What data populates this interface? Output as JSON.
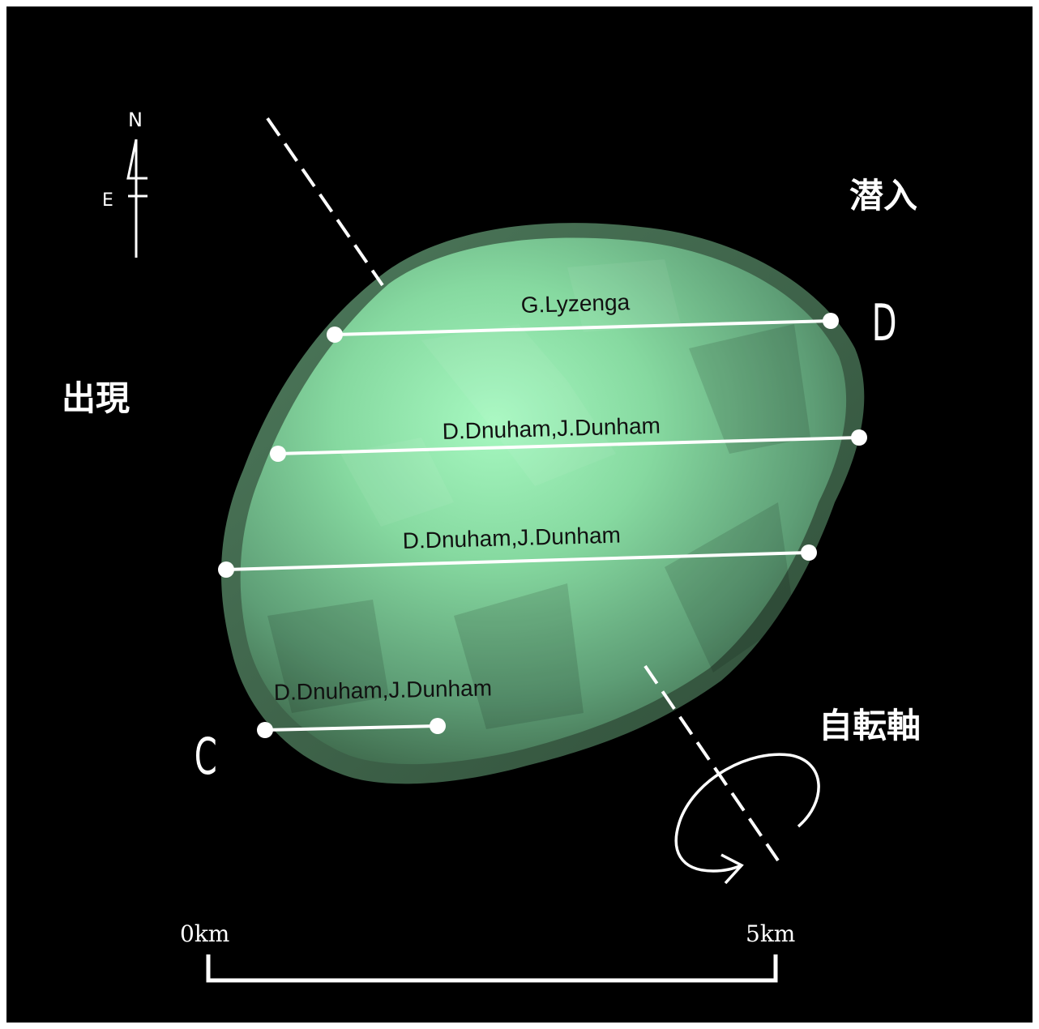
{
  "compass": {
    "north": "N",
    "east": "E"
  },
  "labels": {
    "disappearance": "潜入",
    "reappearance": "出現",
    "rotation_axis": "自転軸",
    "point_d": "D",
    "point_c": "C"
  },
  "chords": [
    {
      "observer": "G.Lyzenga"
    },
    {
      "observer": "D.Dnuham,J.Dunham"
    },
    {
      "observer": "D.Dnuham,J.Dunham"
    },
    {
      "observer": "D.Dnuham,J.Dunham"
    }
  ],
  "scale_bar": {
    "start_label": "0km",
    "end_label": "5km"
  },
  "colors": {
    "background": "#000000",
    "asteroid_light": "#9ef5b8",
    "asteroid_mid": "#6fbf8a",
    "asteroid_dark": "#3e6e50",
    "lines": "#ffffff"
  }
}
